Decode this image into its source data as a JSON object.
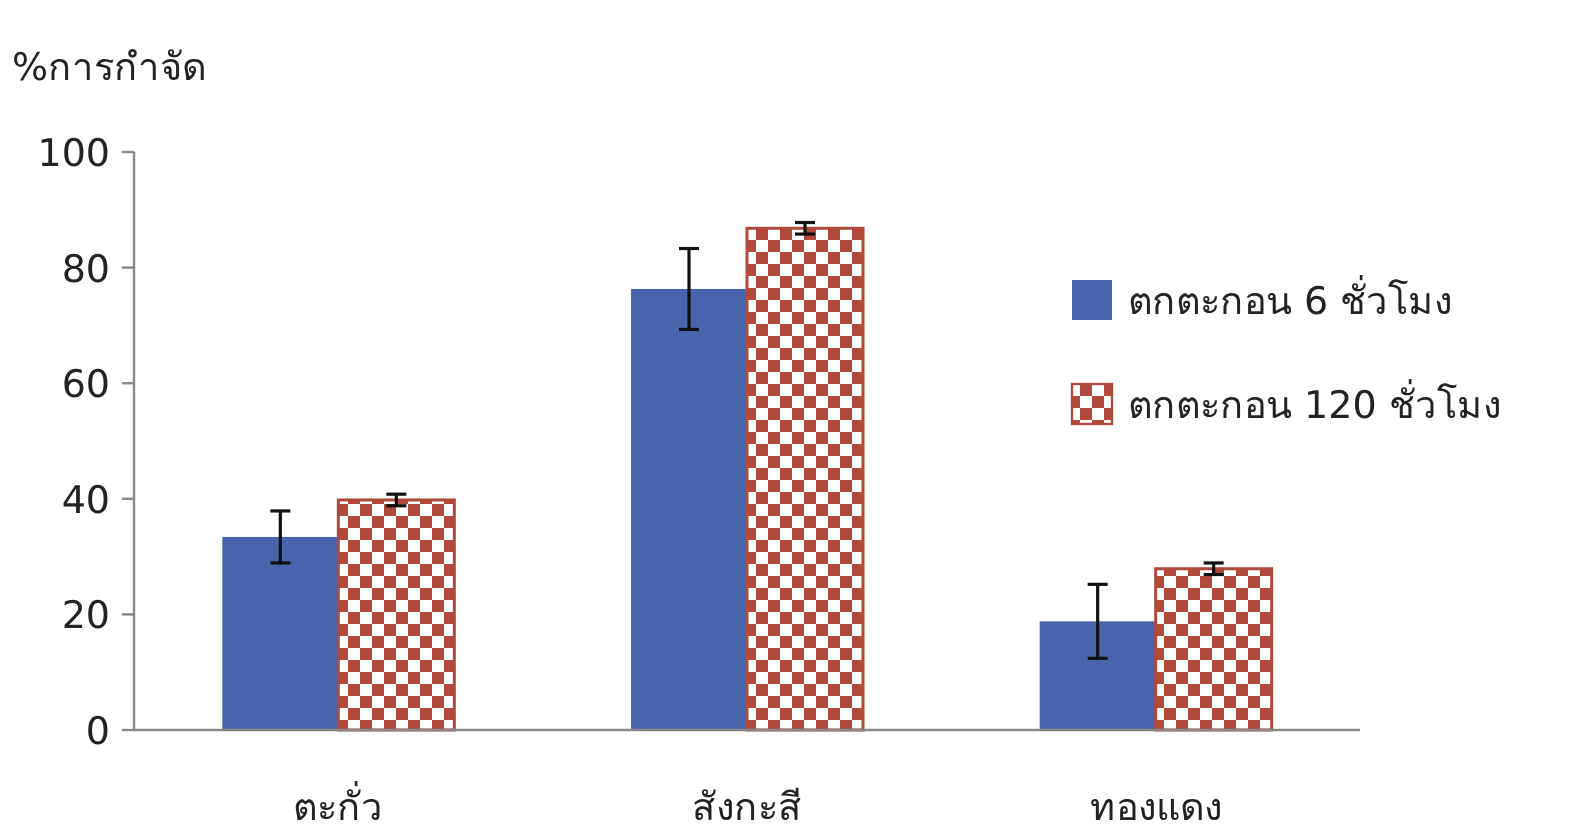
{
  "chart_data": {
    "type": "bar",
    "ylabel": "%การกำจัด",
    "categories": [
      "ตะกั่ว",
      "สังกะสี",
      "ทองแดง"
    ],
    "series": [
      {
        "name": "ตกตะกอน 6 ชั่วโมง",
        "color": "#4a63ad",
        "values": [
          33.4,
          76.3,
          18.8
        ],
        "errors": [
          4.5,
          7,
          6.4
        ]
      },
      {
        "name": "ตกตะกอน 120 ชั่วโมง",
        "color": "#b04a3c",
        "values": [
          39.8,
          86.8,
          27.9
        ],
        "errors": [
          1,
          1,
          1
        ]
      }
    ],
    "ylim": [
      0,
      100
    ],
    "yticks": [
      0,
      20,
      40,
      60,
      80,
      100
    ],
    "legend": "right",
    "grid": false
  }
}
